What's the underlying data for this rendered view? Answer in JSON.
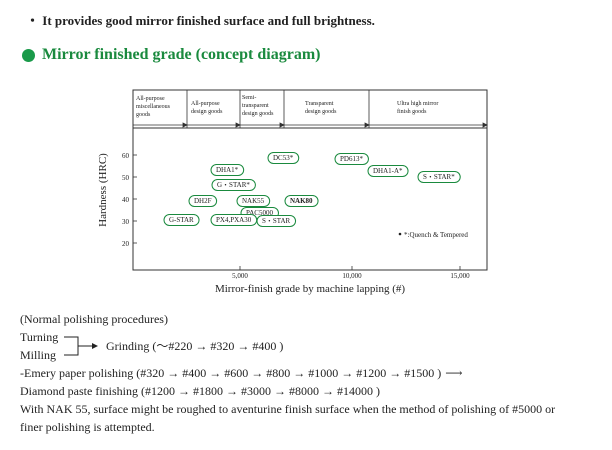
{
  "intro": {
    "bullet": "・",
    "text": "It provides good mirror finished surface and full brightness."
  },
  "section": {
    "title": "Mirror finished grade (concept diagram)",
    "accent": "#1a9a4a"
  },
  "diagram": {
    "categories": [
      [
        "All-purpose",
        "miscellaneous",
        "goods"
      ],
      [
        "All-purpose",
        "design goods"
      ],
      [
        "Semi-",
        "transparent",
        "design goods"
      ],
      [
        "Transparent",
        "design goods"
      ],
      [
        "Ultra high mirror",
        "finish goods"
      ]
    ],
    "y_axis_label": "Hardness (HRC)",
    "y_ticks": [
      "60",
      "50",
      "40",
      "30",
      "20"
    ],
    "x_ticks": [
      "5,000",
      "10,000",
      "15,000"
    ],
    "x_axis_label": "Mirror-finish grade by machine lapping (#)",
    "grades": [
      {
        "label": "DC53*",
        "bold": false
      },
      {
        "label": "PD613*",
        "bold": false
      },
      {
        "label": "DHA1*",
        "bold": false
      },
      {
        "label": "DHA1-A*",
        "bold": false
      },
      {
        "label": "S・STAR*",
        "bold": false
      },
      {
        "label": "G・STAR*",
        "bold": false
      },
      {
        "label": "DH2F",
        "bold": false
      },
      {
        "label": "NAK55",
        "bold": false
      },
      {
        "label": "NAK80",
        "bold": true
      },
      {
        "label": "PAC5000",
        "bold": false
      },
      {
        "label": "G-STAR",
        "bold": false
      },
      {
        "label": "PX4,PXA30",
        "bold": false
      },
      {
        "label": "S・STAR",
        "bold": false
      }
    ],
    "legend_note": "*:Quench & Tempered",
    "line_color": "#1a8a3e"
  },
  "notes": {
    "heading": "(Normal polishing procedures)",
    "turning": "Turning",
    "milling": "Milling",
    "grinding": "Grinding (～#220 → #320 → #400 )",
    "emery": "-Emery paper polishing (#320 → #400 → #600 → #800 → #1000 → #1200 → #1500 )",
    "diamond": "Diamond paste finishing (#1200 → #1800 → #3000 → #8000 → #14000 )",
    "nak_note_1": "With NAK 55, surface might be roughed to aventurine finish surface when the method of polishing of #5000 or",
    "nak_note_2": "finer polishing is attempted."
  }
}
